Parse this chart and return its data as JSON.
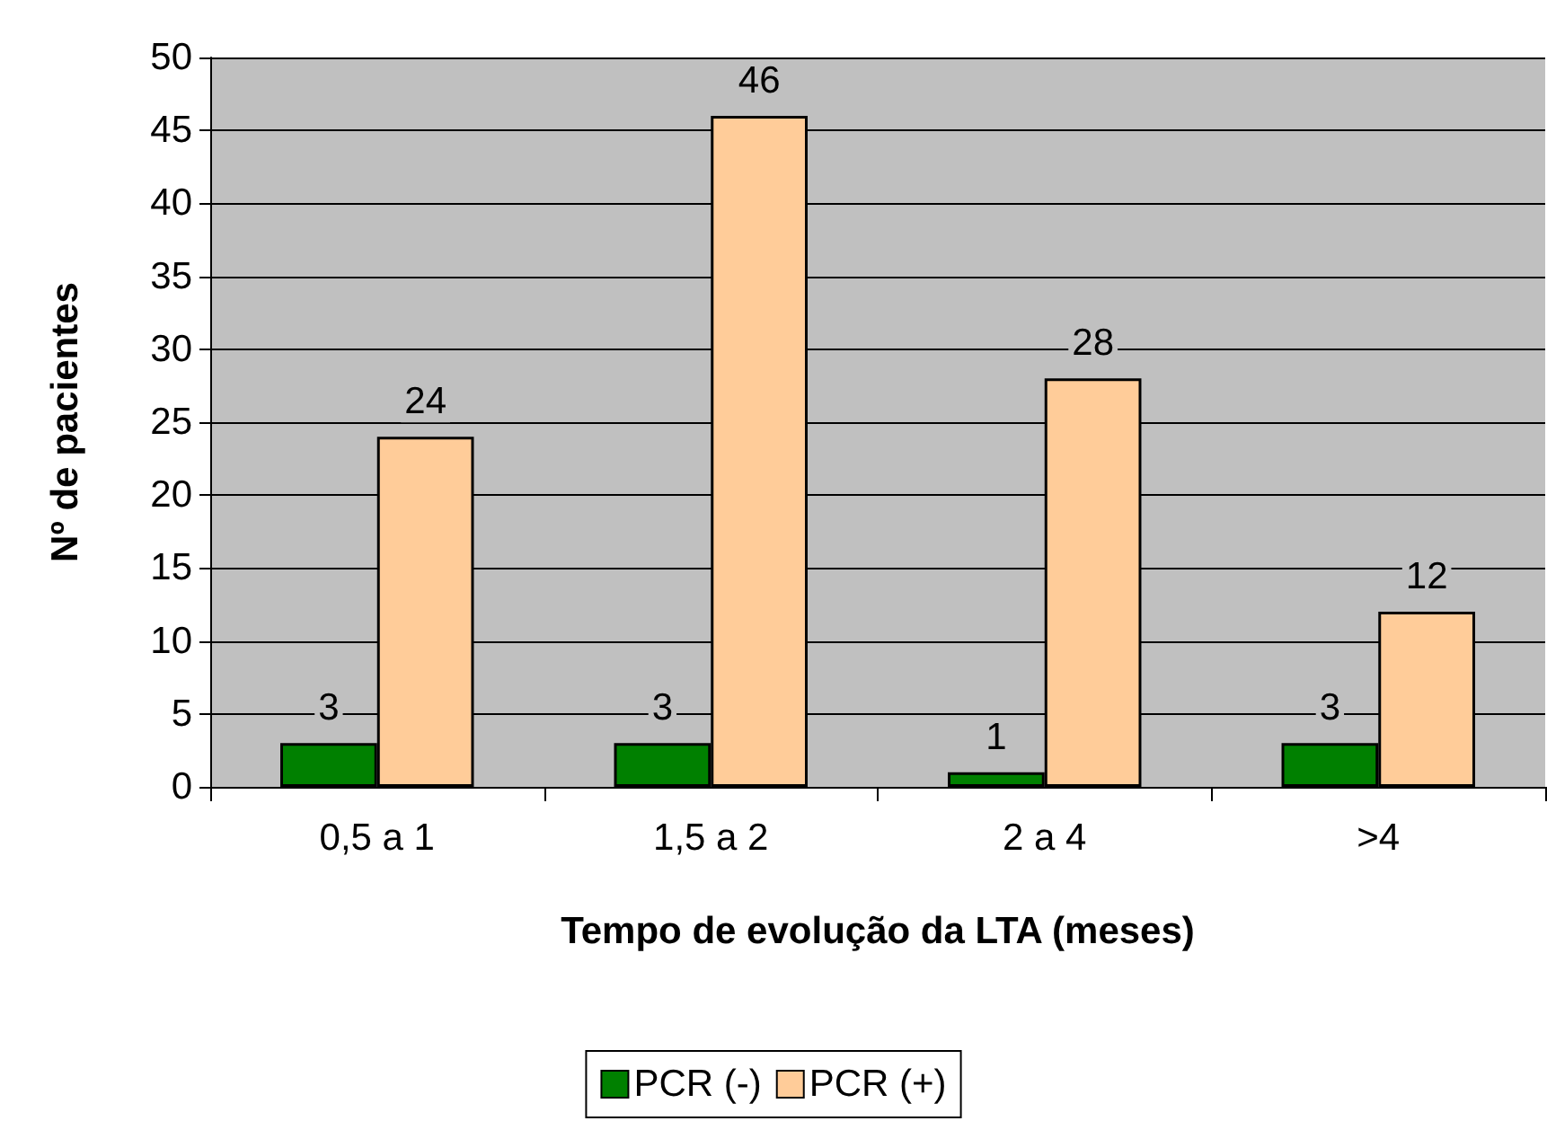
{
  "chart_data": {
    "type": "bar",
    "xlabel": "Tempo de evolução da LTA (meses)",
    "ylabel": "Nº de pacientes",
    "categories": [
      "0,5 a 1",
      "1,5 a 2",
      "2 a 4",
      ">4"
    ],
    "series": [
      {
        "name": "PCR (-)",
        "color": "#008000",
        "values": [
          3,
          3,
          1,
          3
        ]
      },
      {
        "name": "PCR (+)",
        "color": "#ffcc99",
        "values": [
          24,
          46,
          28,
          12
        ]
      }
    ],
    "ylim": [
      0,
      50
    ],
    "yticks": [
      0,
      5,
      10,
      15,
      20,
      25,
      30,
      35,
      40,
      45,
      50
    ],
    "grid": "y",
    "legend": "bottom",
    "data_labels": true
  }
}
